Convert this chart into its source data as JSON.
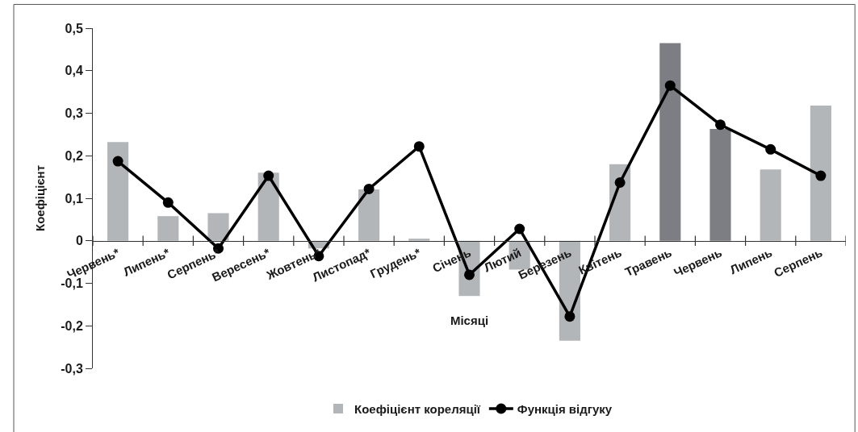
{
  "chart_data": {
    "type": "bar",
    "xlabel": "Місяці",
    "ylabel": "Коефіцієнт",
    "categories": [
      "Червень*",
      "Липень*",
      "Серпень*",
      "Вересень*",
      "Жовтень*",
      "Листопад*",
      "Грудень*",
      "Січень",
      "Лютий",
      "Березень",
      "Квітень",
      "Травень",
      "Червень",
      "Липень",
      "Серпень"
    ],
    "series": [
      {
        "name": "Коефіцієнт кореляції",
        "color": "#b3b6b9",
        "colors": [
          "#b3b6b9",
          "#b3b6b9",
          "#b3b6b9",
          "#b3b6b9",
          "#b3b6b9",
          "#b3b6b9",
          "#b3b6b9",
          "#b3b6b9",
          "#b3b6b9",
          "#b3b6b9",
          "#b3b6b9",
          "#7d7e83",
          "#7d7e83",
          "#b3b6b9",
          "#b3b6b9"
        ],
        "values": [
          0.232,
          0.058,
          0.065,
          0.16,
          -0.018,
          0.121,
          0.005,
          -0.13,
          -0.068,
          -0.235,
          0.18,
          0.465,
          0.263,
          0.168,
          0.318
        ]
      },
      {
        "name": "Функція відгуку",
        "type": "line",
        "color": "#000000",
        "marker": "circle",
        "values": [
          0.187,
          0.09,
          -0.018,
          0.153,
          -0.036,
          0.122,
          0.222,
          -0.08,
          0.028,
          -0.178,
          0.137,
          0.365,
          0.273,
          0.215,
          0.153
        ]
      }
    ],
    "ylim": [
      -0.3,
      0.5
    ],
    "yticks": [
      {
        "value": -0.3,
        "label": "-0,3"
      },
      {
        "value": -0.2,
        "label": "-0,2"
      },
      {
        "value": -0.1,
        "label": "-0,1"
      },
      {
        "value": 0,
        "label": "0"
      },
      {
        "value": 0.1,
        "label": "0,1"
      },
      {
        "value": 0.2,
        "label": "0,2"
      },
      {
        "value": 0.3,
        "label": "0,3"
      },
      {
        "value": 0.4,
        "label": "0,4"
      },
      {
        "value": 0.5,
        "label": "0,5"
      }
    ],
    "legend": "bottom"
  }
}
